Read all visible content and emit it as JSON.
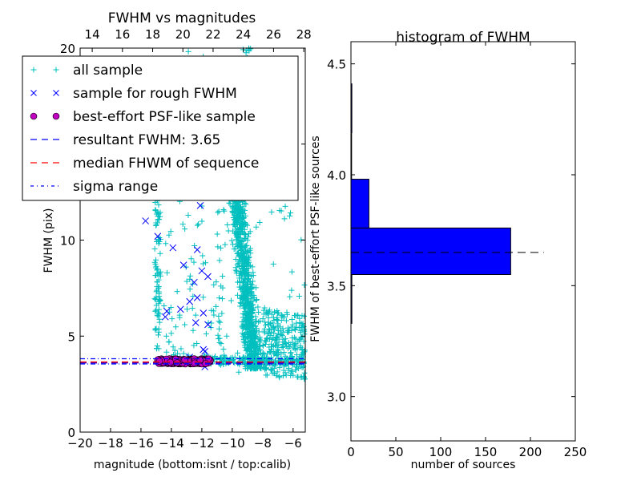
{
  "chart_data": [
    {
      "type": "scatter",
      "title": "FWHM vs magnitudes",
      "xlabel": "magnitude (bottom:isnt / top:calib)",
      "ylabel": "FWHM (pix)",
      "xlim": [
        -20,
        -5.2
      ],
      "ylim": [
        0,
        20
      ],
      "x_ticks": [
        -20,
        -18,
        -16,
        -14,
        -12,
        -10,
        -8,
        -6
      ],
      "x_tick_labels": [
        "−20",
        "−18",
        "−16",
        "−14",
        "−12",
        "−10",
        "−8",
        "−6"
      ],
      "y_ticks": [
        0,
        5,
        10,
        15,
        20
      ],
      "y_tick_labels": [
        "0",
        "5",
        "10",
        "15",
        "20"
      ],
      "top_x_ticks": [
        14,
        16,
        18,
        20,
        22,
        24,
        26,
        28
      ],
      "top_x_tick_labels": [
        "14",
        "16",
        "18",
        "20",
        "22",
        "24",
        "26",
        "28"
      ],
      "top_xlim": [
        13.2,
        28.1
      ],
      "grid": false,
      "legend_position": "upper-left",
      "legend": [
        {
          "label": "all sample",
          "marker": "plus",
          "color": "#00bfbf"
        },
        {
          "label": "sample for rough FWHM",
          "marker": "x",
          "color": "#0000ff"
        },
        {
          "label": "best-effort PSF-like sample",
          "marker": "circle",
          "color": "#bf00bf"
        },
        {
          "label": "resultant FWHM: 3.65",
          "marker": "dashed-line",
          "color": "#0000ff"
        },
        {
          "label": "median FHWM of sequence",
          "marker": "dashed-line",
          "color": "#ff0000"
        },
        {
          "label": "sigma range",
          "marker": "dashdot-line",
          "color": "#0000ff"
        }
      ],
      "resultant_fwhm": 3.65,
      "median_fwhm": 3.65,
      "sigma_range": [
        3.55,
        3.82
      ],
      "series": [
        {
          "name": "sample for rough FWHM",
          "color": "#0000ff",
          "points": [
            [
              -15.7,
              11.0
            ],
            [
              -14.9,
              10.2
            ],
            [
              -13.9,
              9.6
            ],
            [
              -12.3,
              9.5
            ],
            [
              -13.2,
              8.7
            ],
            [
              -12.0,
              8.4
            ],
            [
              -11.6,
              8.1
            ],
            [
              -12.5,
              7.8
            ],
            [
              -12.3,
              7.0
            ],
            [
              -12.8,
              6.8
            ],
            [
              -13.4,
              6.4
            ],
            [
              -14.3,
              6.3
            ],
            [
              -11.9,
              6.2
            ],
            [
              -14.4,
              6.0
            ],
            [
              -12.4,
              5.7
            ],
            [
              -11.6,
              5.6
            ],
            [
              -11.9,
              4.3
            ],
            [
              -11.8,
              4.2
            ],
            [
              -12.8,
              3.9
            ],
            [
              -12.1,
              11.8
            ],
            [
              -11.8,
              3.4
            ]
          ]
        },
        {
          "name": "best-effort PSF-like sample",
          "color": "#bf00bf",
          "x_range": [
            -14.9,
            -11.4
          ],
          "y_range": [
            3.55,
            3.82
          ]
        },
        {
          "name": "all sample",
          "color": "#00bfbf",
          "clusters": [
            {
              "description": "bright vertical strip",
              "x_range": [
                -15.1,
                -14.7
              ],
              "y_range": [
                4.3,
                12.5
              ]
            },
            {
              "description": "scattered mid",
              "x_range": [
                -14.5,
                -10.5
              ],
              "y_range": [
                3.9,
                20
              ]
            },
            {
              "description": "main faint locus",
              "x_range": [
                -9.8,
                -7.0
              ],
              "y_range": [
                3.3,
                13
              ]
            },
            {
              "description": "faint tail",
              "x_range": [
                -8.0,
                -5.2
              ],
              "y_range": [
                2.3,
                8.5
              ]
            },
            {
              "description": "stellar line",
              "x_range": [
                -11.5,
                -5.2
              ],
              "y_range": [
                3.5,
                3.9
              ]
            }
          ]
        }
      ]
    },
    {
      "type": "bar",
      "orientation": "horizontal",
      "title": "histogram of FWHM",
      "xlabel": "number of sources",
      "ylabel": "FWHM of best-effort PSF-like sources",
      "xlim": [
        0,
        250
      ],
      "ylim": [
        2.8,
        4.6
      ],
      "x_ticks": [
        0,
        50,
        100,
        150,
        200,
        250
      ],
      "x_tick_labels": [
        "0",
        "50",
        "100",
        "150",
        "200",
        "250"
      ],
      "y_ticks": [
        3.0,
        3.5,
        4.0,
        4.5
      ],
      "y_tick_labels": [
        "3.0",
        "3.5",
        "4.0",
        "4.5"
      ],
      "grid": false,
      "bar_color": "#0000ff",
      "bins": [
        {
          "from": 3.33,
          "to": 3.55,
          "count": 1
        },
        {
          "from": 3.55,
          "to": 3.76,
          "count": 178
        },
        {
          "from": 3.76,
          "to": 3.98,
          "count": 20
        },
        {
          "from": 3.98,
          "to": 4.19,
          "count": 0
        },
        {
          "from": 4.19,
          "to": 4.41,
          "count": 1
        }
      ],
      "reference_line": {
        "value": 3.65,
        "extent": 215,
        "style": "dashed",
        "color": "#000000"
      }
    }
  ]
}
